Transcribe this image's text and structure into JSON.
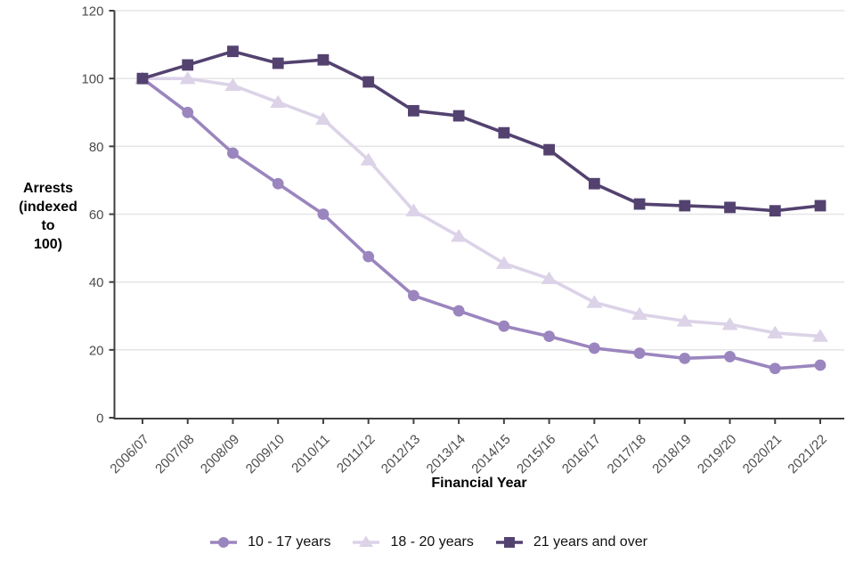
{
  "chart_data": {
    "type": "line",
    "title": "",
    "xlabel": "Financial Year",
    "ylabel": "Arrests (indexed to 100)",
    "ylabel_lines": [
      "Arrests",
      "(indexed",
      "to",
      "100)"
    ],
    "ylim": [
      0,
      120
    ],
    "yticks": [
      0,
      20,
      40,
      60,
      80,
      100,
      120
    ],
    "grid": "horizontal",
    "legend_position": "bottom",
    "categories": [
      "2006/07",
      "2007/08",
      "2008/09",
      "2009/10",
      "2010/11",
      "2011/12",
      "2012/13",
      "2013/14",
      "2014/15",
      "2015/16",
      "2016/17",
      "2017/18",
      "2018/19",
      "2019/20",
      "2020/21",
      "2021/22"
    ],
    "series": [
      {
        "name": "10 - 17 years",
        "marker": "circle",
        "color": "#9b85be",
        "values": [
          100,
          90,
          78,
          69,
          60,
          47.5,
          36,
          31.5,
          27,
          24,
          20.5,
          19,
          17.5,
          18,
          14.5,
          15.5
        ]
      },
      {
        "name": "18 - 20 years",
        "marker": "triangle",
        "color": "#dcd3e8",
        "values": [
          100,
          100,
          98,
          93,
          88,
          76,
          61,
          53.5,
          45.5,
          41,
          34,
          30.5,
          28.5,
          27.5,
          25,
          24
        ]
      },
      {
        "name": "21 years and over",
        "marker": "square",
        "color": "#53426f",
        "values": [
          100,
          104,
          108,
          104.5,
          105.5,
          99,
          90.5,
          89,
          84,
          79,
          69,
          63,
          62.5,
          62,
          61,
          62.5
        ]
      }
    ],
    "draw_order": [
      1,
      0,
      2
    ],
    "colors": {
      "axis": "#3f3f3f",
      "grid": "#e6e6e6",
      "tick_labels": "#4d4d4d",
      "text": "#000000",
      "background": "#ffffff"
    }
  }
}
